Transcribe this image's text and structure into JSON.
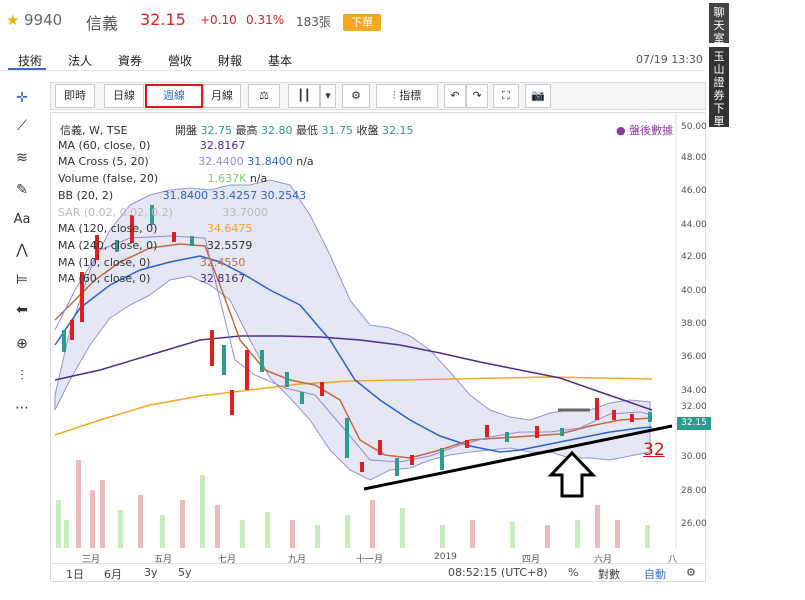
{
  "header": {
    "code": "9940",
    "name": "信義",
    "price": "32.15",
    "change": "+0.10",
    "percent": "0.31%",
    "volume": "183張",
    "order_button": "下單"
  },
  "side_tabs": {
    "chat": "聊天室",
    "broker": "玉山證券下單"
  },
  "nav_tabs": [
    "技術",
    "法人",
    "資券",
    "營收",
    "財報",
    "基本"
  ],
  "datetime": "07/19 13:30",
  "toolbar": {
    "intraday": "即時",
    "daily": "日線",
    "weekly": "週線",
    "monthly": "月線",
    "indicators": "指標"
  },
  "left_tools": {
    "text_tool": "Aa"
  },
  "legend": {
    "main": "信義, W, TSE",
    "ohlc_open_label": "開盤",
    "open": "32.75",
    "ohlc_high_label": "最高",
    "high": "32.80",
    "ohlc_low_label": "最低",
    "low": "31.75",
    "ohlc_close_label": "收盤",
    "close": "32.15",
    "ma60": "MA (60, close, 0)",
    "ma60_val": "32.8167",
    "macross": "MA Cross (5, 20)",
    "macross_v1": "32.4400",
    "macross_v2": "31.8400",
    "macross_v3": "n/a",
    "volume": "Volume (false, 20)",
    "volume_val": "1.637K",
    "volume_v2": "n/a",
    "bb": "BB (20, 2)",
    "bb_v1": "31.8400",
    "bb_v2": "33.4257",
    "bb_v3": "30.2543",
    "sar": "SAR (0.02, 0.02, 0.2)",
    "sar_val": "33.7000",
    "ma120": "MA (120, close, 0)",
    "ma120_val": "34.6475",
    "ma240": "MA (240, close, 0)",
    "ma240_val": "32.5579",
    "ma10": "MA (10, close, 0)",
    "ma10_val": "32.4550",
    "ma60b": "MA (60, close, 0)",
    "ma60b_val": "32.8167",
    "after_hours": "● 盤後數據"
  },
  "y_axis": [
    "50.00",
    "48.00",
    "46.00",
    "44.00",
    "42.00",
    "40.00",
    "38.00",
    "36.00",
    "34.00",
    "32.00",
    "30.00",
    "28.00",
    "26.00"
  ],
  "x_axis": [
    "三月",
    "五月",
    "七月",
    "九月",
    "十一月",
    "2019",
    "四月",
    "六月",
    "八"
  ],
  "price_tag": "32.15",
  "annotation": "32",
  "bottom": {
    "r1d": "1日",
    "r6m": "6月",
    "r3y": "3y",
    "r5y": "5y",
    "time": "08:52:15 (UTC+8)",
    "pct": "%",
    "log": "對數",
    "auto": "自動"
  },
  "accent_colors": {
    "up": "#e02020",
    "down": "#2a9d8f",
    "bb_fill": "#c8cae6",
    "ma_blue": "#2b62d6",
    "ma_purple": "#4b2f8c",
    "ma_orange": "#f5a623",
    "ma_brown": "#c46a3c"
  }
}
